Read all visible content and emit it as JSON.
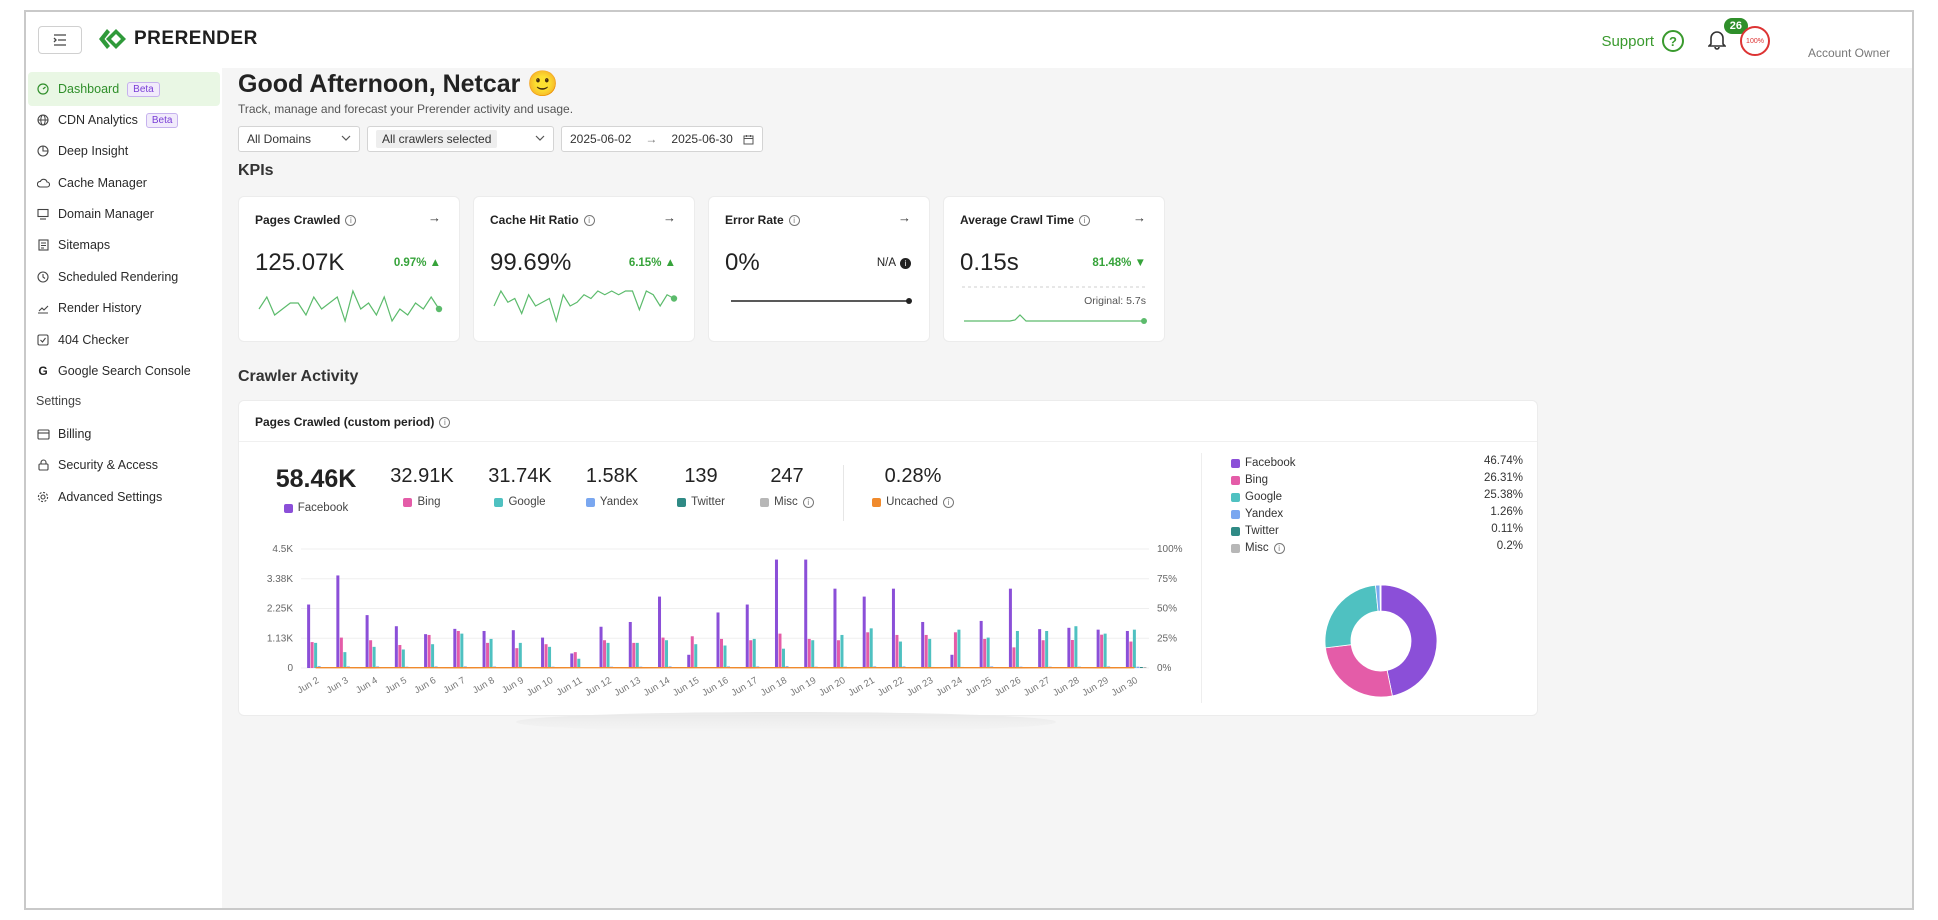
{
  "header": {
    "brand": "PRERENDER",
    "support_label": "Support",
    "notification_count": "26",
    "avatar_text": "100%",
    "account_role": "Account Owner"
  },
  "sidebar": {
    "items": [
      {
        "label": "Dashboard",
        "badge": "Beta",
        "icon": "dashboard-icon",
        "active": true
      },
      {
        "label": "CDN Analytics",
        "badge": "Beta",
        "icon": "globe-icon"
      },
      {
        "label": "Deep Insight",
        "icon": "pie-icon"
      },
      {
        "label": "Cache Manager",
        "icon": "cloud-icon"
      },
      {
        "label": "Domain Manager",
        "icon": "monitor-icon"
      },
      {
        "label": "Sitemaps",
        "icon": "document-icon"
      },
      {
        "label": "Scheduled Rendering",
        "icon": "clock-icon"
      },
      {
        "label": "Render History",
        "icon": "chart-line-icon"
      },
      {
        "label": "404 Checker",
        "icon": "checkbox-icon"
      },
      {
        "label": "Google Search Console",
        "icon": "google-icon"
      }
    ],
    "settings_title": "Settings",
    "settings_items": [
      {
        "label": "Billing",
        "icon": "card-icon"
      },
      {
        "label": "Security & Access",
        "icon": "lock-icon"
      },
      {
        "label": "Advanced Settings",
        "icon": "gear-icon"
      }
    ]
  },
  "main": {
    "greeting": "Good Afternoon, Netcar 🙂",
    "subtitle": "Track, manage and forecast your Prerender activity and usage.",
    "filters": {
      "domains": "All Domains",
      "crawlers": "All crawlers selected",
      "date_from": "2025-06-02",
      "date_sep": "→",
      "date_to": "2025-06-30"
    },
    "kpis_title": "KPIs",
    "kpis": [
      {
        "title": "Pages Crawled",
        "value": "125.07K",
        "delta": "0.97% ▲",
        "spark": [
          6,
          4,
          7,
          6,
          5,
          5,
          7,
          4,
          6,
          5,
          4,
          8,
          3,
          6,
          5,
          7,
          4,
          8,
          6,
          7,
          5,
          6,
          4,
          6
        ]
      },
      {
        "title": "Cache Hit Ratio",
        "value": "99.69%",
        "delta": "6.15% ▲",
        "spark": [
          6,
          2,
          5,
          4,
          8,
          3,
          6,
          5,
          4,
          10,
          3,
          6,
          5,
          3,
          4,
          2,
          3,
          2,
          3,
          2,
          2,
          7,
          2,
          3,
          6,
          3,
          4
        ]
      },
      {
        "title": "Error Rate",
        "value": "0%",
        "na": "N/A"
      },
      {
        "title": "Average Crawl Time",
        "value": "0.15s",
        "delta": "81.48% ▼",
        "original": "Original: 5.7s"
      }
    ],
    "activity_title": "Crawler Activity",
    "activity_card_title": "Pages Crawled (custom period)",
    "stats": [
      {
        "value": "58.46K",
        "label": "Facebook"
      },
      {
        "value": "32.91K",
        "label": "Bing"
      },
      {
        "value": "31.74K",
        "label": "Google"
      },
      {
        "value": "1.58K",
        "label": "Yandex"
      },
      {
        "value": "139",
        "label": "Twitter"
      },
      {
        "value": "247",
        "label": "Misc"
      },
      {
        "value": "0.28%",
        "label": "Uncached"
      }
    ],
    "legend": [
      {
        "label": "Facebook",
        "pct": "46.74%"
      },
      {
        "label": "Bing",
        "pct": "26.31%"
      },
      {
        "label": "Google",
        "pct": "25.38%"
      },
      {
        "label": "Yandex",
        "pct": "1.26%"
      },
      {
        "label": "Twitter",
        "pct": "0.11%"
      },
      {
        "label": "Misc",
        "pct": "0.2%"
      }
    ]
  },
  "colors": {
    "Facebook": "#8b4fd8",
    "Bing": "#e45ca8",
    "Google": "#4fc1c1",
    "Yandex": "#7aa7f0",
    "Twitter": "#2f8a85",
    "Misc": "#b7b7b7",
    "Uncached": "#f08a2c",
    "accent": "#2f8f2a"
  },
  "chart_data": [
    {
      "type": "bar",
      "categories": [
        "Jun 2",
        "Jun 3",
        "Jun 4",
        "Jun 5",
        "Jun 6",
        "Jun 7",
        "Jun 8",
        "Jun 9",
        "Jun 10",
        "Jun 11",
        "Jun 12",
        "Jun 13",
        "Jun 14",
        "Jun 15",
        "Jun 16",
        "Jun 17",
        "Jun 18",
        "Jun 19",
        "Jun 20",
        "Jun 21",
        "Jun 22",
        "Jun 23",
        "Jun 24",
        "Jun 25",
        "Jun 26",
        "Jun 27",
        "Jun 28",
        "Jun 29",
        "Jun 30"
      ],
      "series": [
        {
          "name": "Facebook",
          "values": [
            2400,
            3500,
            2000,
            1580,
            1280,
            1480,
            1400,
            1430,
            1150,
            550,
            1560,
            1740,
            2700,
            500,
            2100,
            2400,
            4100,
            4100,
            3000,
            2700,
            3000,
            1740,
            500,
            1780,
            3000,
            1470,
            1520,
            1450,
            1400
          ]
        },
        {
          "name": "Bing",
          "values": [
            980,
            1150,
            1050,
            870,
            1250,
            1400,
            950,
            750,
            900,
            600,
            1050,
            950,
            1150,
            1200,
            1100,
            1050,
            1300,
            1100,
            1050,
            1350,
            1250,
            1250,
            1350,
            1100,
            780,
            1050,
            1060,
            1260,
            1000
          ]
        },
        {
          "name": "Google",
          "values": [
            950,
            600,
            800,
            700,
            900,
            1300,
            1100,
            950,
            800,
            350,
            950,
            950,
            1050,
            900,
            850,
            1100,
            730,
            1050,
            1250,
            1500,
            1000,
            1100,
            1450,
            1150,
            1400,
            1400,
            1580,
            1300,
            1450
          ]
        },
        {
          "name": "Yandex",
          "values": [
            70,
            60,
            60,
            50,
            60,
            60,
            55,
            40,
            50,
            30,
            50,
            50,
            60,
            30,
            60,
            60,
            70,
            50,
            50,
            60,
            60,
            40,
            40,
            60,
            50,
            50,
            50,
            60,
            50
          ]
        },
        {
          "name": "Twitter",
          "values": [
            5,
            4,
            5,
            4,
            4,
            5,
            5,
            4,
            5,
            3,
            5,
            5,
            5,
            3,
            4,
            5,
            6,
            5,
            5,
            5,
            5,
            4,
            4,
            5,
            5,
            4,
            5,
            5,
            4
          ]
        },
        {
          "name": "Misc",
          "values": [
            8,
            9,
            8,
            8,
            9,
            9,
            8,
            8,
            8,
            6,
            9,
            8,
            9,
            6,
            9,
            9,
            10,
            10,
            9,
            9,
            9,
            8,
            7,
            9,
            9,
            8,
            8,
            9,
            8
          ]
        },
        {
          "name": "Uncached",
          "axis": "right",
          "values": [
            0.3,
            0.3,
            0.2,
            0.3,
            0.3,
            0.2,
            0.3,
            0.3,
            0.2,
            0.3,
            0.3,
            0.2,
            0.3,
            0.3,
            0.3,
            0.2,
            0.3,
            0.3,
            0.2,
            0.3,
            0.3,
            0.2,
            0.3,
            0.3,
            0.2,
            0.3,
            0.3,
            0.2,
            0.3
          ]
        }
      ],
      "ylim": [
        0,
        4500
      ],
      "yticks": [
        "0",
        "1.13K",
        "2.25K",
        "3.38K",
        "4.5K"
      ],
      "y2lim": [
        0,
        100
      ],
      "y2ticks": [
        "0%",
        "25%",
        "50%",
        "75%",
        "100%"
      ],
      "grid": true
    },
    {
      "type": "pie",
      "style": "donut",
      "labels": [
        "Facebook",
        "Bing",
        "Google",
        "Yandex",
        "Twitter",
        "Misc"
      ],
      "values": [
        46.74,
        26.31,
        25.38,
        1.26,
        0.11,
        0.2
      ]
    }
  ]
}
